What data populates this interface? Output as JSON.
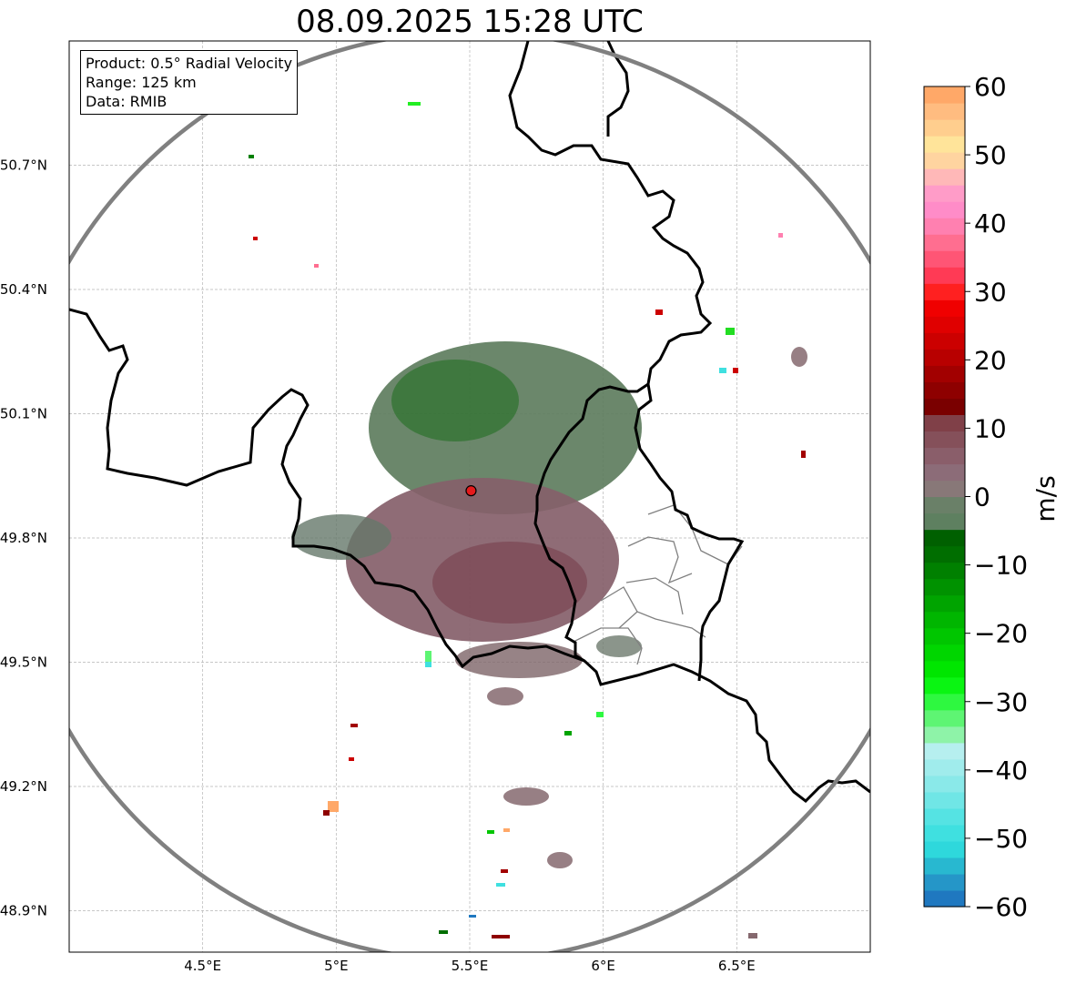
{
  "title": "08.09.2025 15:28 UTC",
  "info": {
    "product": "Product: 0.5° Radial Velocity",
    "range": "Range: 125 km",
    "data": "Data: RMIB"
  },
  "map": {
    "lon_range": [
      4.0,
      7.0
    ],
    "lat_range": [
      48.8,
      51.0
    ],
    "lon_ticks": [
      {
        "value": 4.5,
        "label": "4.5°E"
      },
      {
        "value": 5.0,
        "label": "5°E"
      },
      {
        "value": 5.5,
        "label": "5.5°E"
      },
      {
        "value": 6.0,
        "label": "6°E"
      },
      {
        "value": 6.5,
        "label": "6.5°E"
      }
    ],
    "lat_ticks": [
      {
        "value": 50.7,
        "label": "50.7°N"
      },
      {
        "value": 50.4,
        "label": "50.4°N"
      },
      {
        "value": 50.1,
        "label": "50.1°N"
      },
      {
        "value": 49.8,
        "label": "49.8°N"
      },
      {
        "value": 49.5,
        "label": "49.5°N"
      },
      {
        "value": 49.2,
        "label": "49.2°N"
      },
      {
        "value": 48.9,
        "label": "48.9°N"
      }
    ],
    "grid": true,
    "radar_site": {
      "lon": 5.505,
      "lat": 49.914
    },
    "range_ring_color": "#808080",
    "site_color": "#e41a1c"
  },
  "colorbar": {
    "min": -60,
    "max": 60,
    "ticks": [
      {
        "value": 60,
        "label": "60"
      },
      {
        "value": 50,
        "label": "50"
      },
      {
        "value": 40,
        "label": "40"
      },
      {
        "value": 30,
        "label": "30"
      },
      {
        "value": 20,
        "label": "20"
      },
      {
        "value": 10,
        "label": "10"
      },
      {
        "value": 0,
        "label": "0"
      },
      {
        "value": -10,
        "label": "−10"
      },
      {
        "value": -20,
        "label": "−20"
      },
      {
        "value": -30,
        "label": "−30"
      },
      {
        "value": -40,
        "label": "−40"
      },
      {
        "value": -50,
        "label": "−50"
      },
      {
        "value": -60,
        "label": "−60"
      }
    ],
    "label": "m/s",
    "colors": [
      "#1f78c0",
      "#2596c8",
      "#28b8d0",
      "#2ed8dc",
      "#3fe0e0",
      "#55e3e3",
      "#70e6e6",
      "#8ae9e9",
      "#a0ecec",
      "#b6efef",
      "#8ef3a8",
      "#5ef573",
      "#2ef840",
      "#0af512",
      "#00e600",
      "#00d600",
      "#00c600",
      "#00b600",
      "#00a400",
      "#009200",
      "#008000",
      "#006e00",
      "#006000",
      "#5e8060",
      "#6a8068",
      "#887878",
      "#8c6c78",
      "#8a5e6a",
      "#85505a",
      "#804048",
      "#7a0000",
      "#8e0000",
      "#a20000",
      "#b80000",
      "#cc0000",
      "#e00000",
      "#f00000",
      "#ff2020",
      "#ff3a55",
      "#ff5575",
      "#ff6e90",
      "#ff80b0",
      "#ff8cc8",
      "#ff9cc8",
      "#ffb8b8",
      "#ffd4a0",
      "#ffe49a",
      "#ffce8e",
      "#ffbc80",
      "#ffa868"
    ]
  }
}
